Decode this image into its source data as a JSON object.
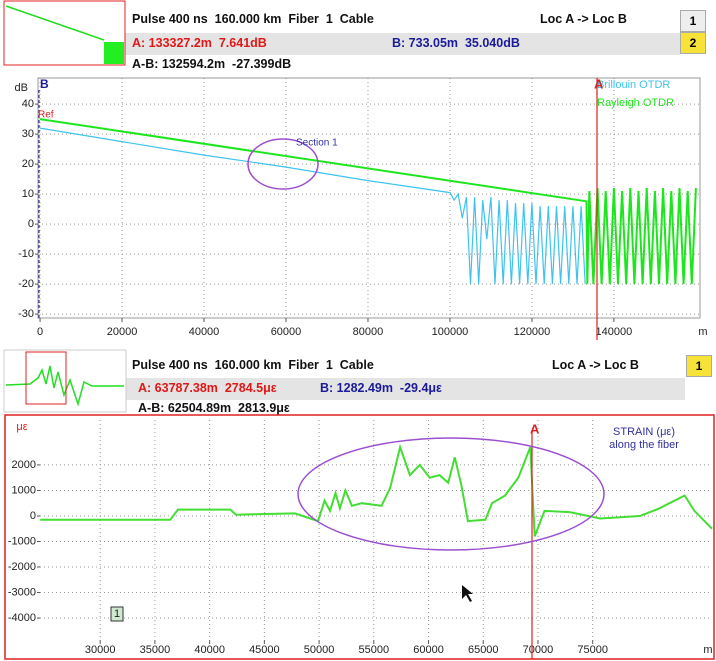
{
  "top_panel": {
    "side_tabs": [
      "1",
      "2"
    ],
    "header": {
      "pulse": "Pulse 400 ns  160.000 km  Fiber  1  Cable",
      "route": "Loc A -> Loc B",
      "cursor_a": "A: 133327.2m  7.641dB",
      "cursor_b": "B: 733.05m  35.040dB",
      "delta": "A-B: 132594.2m  -27.399dB"
    }
  },
  "bottom_panel": {
    "side_tabs": [
      "1"
    ],
    "header": {
      "pulse": "Pulse 400 ns  160.000 km  Fiber  1  Cable",
      "route": "Loc A -> Loc B",
      "cursor_a": "A: 63787.38m  2784.5με",
      "cursor_b": "B: 1282.49m  -29.4με",
      "delta": "A-B: 62504.89m  2813.9με"
    }
  },
  "chart_data": [
    {
      "type": "line",
      "y_unit": "dB",
      "x_unit": "m",
      "marker_a": "A",
      "marker_b": "B",
      "ref_label": "Ref",
      "annotation": "Section 1",
      "xlim": [
        -500,
        161000
      ],
      "ylim": [
        -31.3,
        48.7
      ],
      "xticks": [
        0,
        20000,
        40000,
        60000,
        80000,
        100000,
        120000,
        140000
      ],
      "yticks": [
        -30,
        -20,
        -10,
        0,
        10,
        20,
        30,
        40
      ],
      "grid": true,
      "series": [
        {
          "name": "Brillouin OTDR",
          "color": "#3ec3ef",
          "x": [
            0,
            20000,
            40000,
            60000,
            80000,
            100000,
            101000,
            102000,
            103000,
            104000,
            105000,
            106000,
            107000,
            108000,
            109000,
            110000,
            111000,
            112000,
            113000,
            114000,
            115000,
            116000,
            117000,
            118000,
            119000,
            120000,
            121000,
            122000,
            123000,
            124000,
            125000,
            126000,
            127000,
            128000,
            129000,
            130000,
            131000,
            132000,
            133000
          ],
          "values": [
            32,
            27.5,
            23,
            19,
            14.5,
            10.5,
            8,
            10,
            2,
            9,
            -20,
            9,
            -20,
            8,
            -5,
            9,
            -20,
            8,
            -20,
            8,
            -20,
            7,
            -20,
            7,
            -20,
            7,
            -20,
            6,
            -20,
            6,
            -20,
            6,
            -20,
            6,
            -20,
            6,
            -20,
            6,
            -20
          ]
        },
        {
          "name": "Rayleigh OTDR",
          "color": "#1ee61e",
          "x": [
            0,
            133300,
            133500,
            134000,
            135000,
            136000,
            137000,
            138000,
            139000,
            140000,
            141000,
            142000,
            143000,
            144000,
            145000,
            146000,
            147000,
            148000,
            149000,
            150000,
            151000,
            152000,
            153000,
            154000,
            155000,
            156000,
            157000,
            158000,
            159000,
            160000
          ],
          "values": [
            35,
            7.6,
            -20,
            11,
            -20,
            12,
            -20,
            11,
            -20,
            12,
            -20,
            11,
            -20,
            12,
            -20,
            11,
            -20,
            12,
            -20,
            11,
            -20,
            12,
            -20,
            11,
            -20,
            12,
            -20,
            11,
            -20,
            12
          ]
        }
      ]
    },
    {
      "type": "line",
      "y_unit": "με",
      "x_unit": "m",
      "marker_a": "A",
      "annotation": [
        "STRAIN (με)",
        "along the fiber"
      ],
      "badge": "1",
      "xlim": [
        24500,
        85900
      ],
      "ylim": [
        -4860,
        3760
      ],
      "xticks": [
        30000,
        35000,
        40000,
        45000,
        50000,
        55000,
        60000,
        65000,
        70000,
        75000
      ],
      "yticks": [
        2000,
        1000,
        0,
        -1000,
        -2000,
        -3000,
        -4000
      ],
      "grid": true,
      "series": [
        {
          "color": "#44dd33",
          "x": [
            24520,
            30000,
            36400,
            37100,
            41900,
            42400,
            47800,
            49900,
            50500,
            51000,
            51500,
            51900,
            52400,
            53000,
            53900,
            55700,
            56500,
            57400,
            58300,
            59200,
            60100,
            61000,
            61800,
            62400,
            63000,
            63600,
            65200,
            65800,
            67000,
            68200,
            69300,
            69700,
            70600,
            72900,
            75700,
            79300,
            81100,
            83400,
            84300,
            85900
          ],
          "values": [
            -150,
            -150,
            -150,
            250,
            250,
            50,
            100,
            -200,
            600,
            200,
            900,
            300,
            1000,
            400,
            500,
            400,
            1100,
            2700,
            1600,
            2000,
            1500,
            1600,
            1300,
            2300,
            1200,
            -200,
            -150,
            500,
            800,
            1500,
            2700,
            -800,
            200,
            150,
            -100,
            0,
            300,
            800,
            200,
            -500
          ]
        }
      ]
    }
  ]
}
